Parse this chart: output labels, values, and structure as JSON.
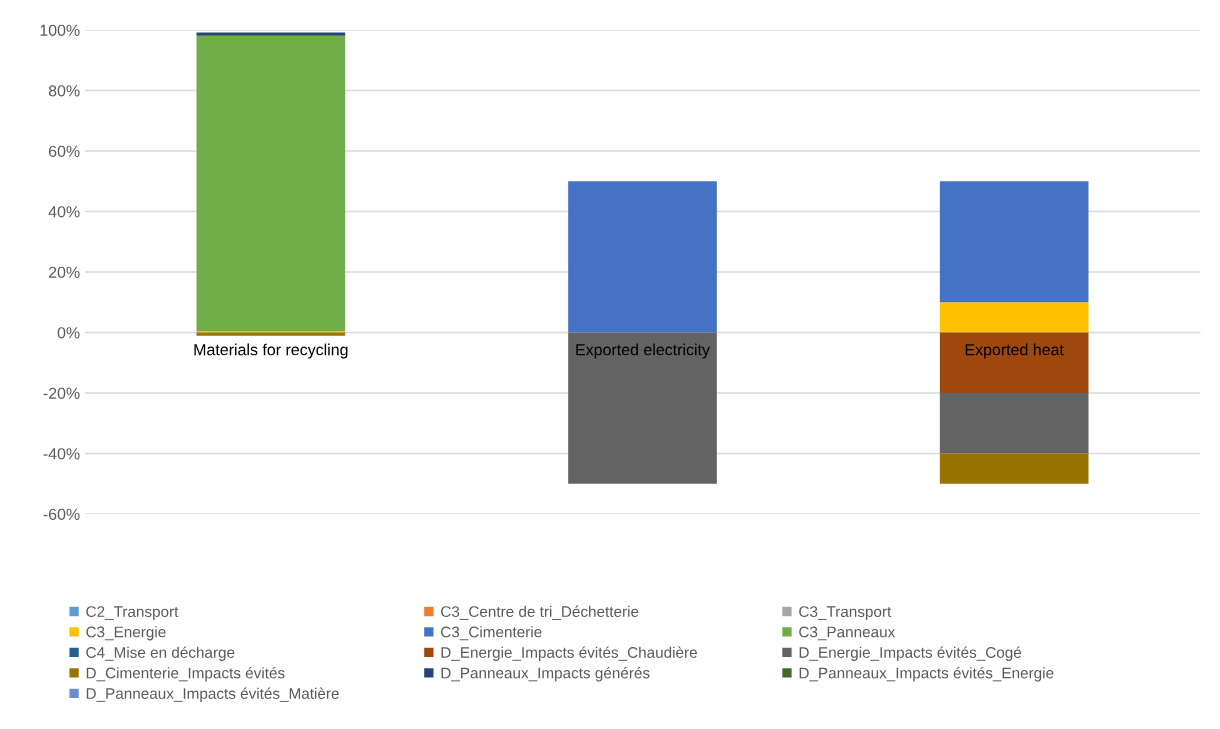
{
  "chart_data": {
    "type": "bar",
    "stacked": true,
    "categories": [
      "Materials for recycling",
      "Exported electricity",
      "Exported heat"
    ],
    "series": [
      {
        "name": "C2_Transport",
        "color": "#5b9bd5",
        "values": [
          null,
          null,
          null
        ]
      },
      {
        "name": "C3_Centre de tri_Déchetterie",
        "color": "#ed7d31",
        "values": [
          null,
          null,
          null
        ]
      },
      {
        "name": "C3_Transport",
        "color": "#a5a5a5",
        "values": [
          null,
          null,
          null
        ]
      },
      {
        "name": "C3_Energie",
        "color": "#ffc000",
        "values": [
          0.5,
          null,
          10
        ]
      },
      {
        "name": "C3_Cimenterie",
        "color": "#4472c4",
        "values": [
          null,
          50,
          40
        ]
      },
      {
        "name": "C3_Panneaux",
        "color": "#70ad47",
        "values": [
          97.6,
          null,
          null
        ]
      },
      {
        "name": "C4_Mise en décharge",
        "color": "#255e91",
        "values": [
          null,
          null,
          null
        ]
      },
      {
        "name": "D_Energie_Impacts évités_Chaudière",
        "color": "#9e480e",
        "values": [
          null,
          null,
          -20
        ]
      },
      {
        "name": "D_Energie_Impacts évités_Cogé",
        "color": "#636363",
        "values": [
          null,
          -50,
          -20
        ]
      },
      {
        "name": "D_Cimenterie_Impacts évités",
        "color": "#997300",
        "values": [
          -1.1,
          null,
          -10
        ]
      },
      {
        "name": "D_Panneaux_Impacts générés",
        "color": "#264478",
        "values": [
          1.1,
          null,
          null
        ]
      },
      {
        "name": "D_Panneaux_Impacts évités_Energie",
        "color": "#43682b",
        "values": [
          null,
          null,
          null
        ]
      },
      {
        "name": "D_Panneaux_Impacts évités_Matière",
        "color": "#698ed0",
        "values": [
          null,
          null,
          null
        ]
      }
    ],
    "ylim": [
      -60,
      100
    ],
    "yticks": [
      {
        "value": -60,
        "label": "-60%"
      },
      {
        "value": -40,
        "label": "-40%"
      },
      {
        "value": -20,
        "label": "-20%"
      },
      {
        "value": 0,
        "label": "0%"
      },
      {
        "value": 20,
        "label": "20%"
      },
      {
        "value": 40,
        "label": "40%"
      },
      {
        "value": 60,
        "label": "60%"
      },
      {
        "value": 80,
        "label": "80%"
      },
      {
        "value": 100,
        "label": "100%"
      }
    ],
    "grid": "y",
    "legend": "bottom"
  }
}
